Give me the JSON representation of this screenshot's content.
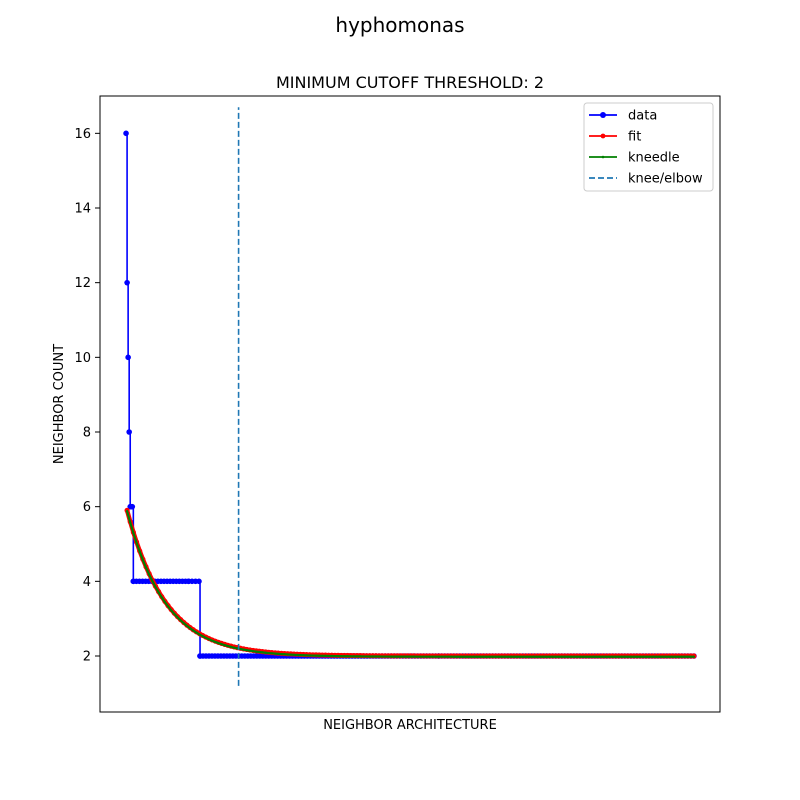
{
  "chart_data": {
    "type": "line",
    "suptitle": "hyphomonas",
    "title": "MINIMUM CUTOFF THRESHOLD: 2",
    "xlabel": "NEIGHBOR ARCHITECTURE",
    "ylabel": "NEIGHBOR COUNT",
    "xlim": [
      -25,
      570
    ],
    "ylim": [
      0.5,
      17.0
    ],
    "yticks": [
      2,
      4,
      6,
      8,
      10,
      12,
      14,
      16
    ],
    "grid": false,
    "legend_position": "top-right",
    "series": [
      {
        "name": "data",
        "color": "#0000ff",
        "marker": "circle",
        "points": [
          [
            0,
            16
          ],
          [
            1,
            12
          ],
          [
            2,
            10
          ],
          [
            3,
            8
          ],
          [
            4,
            6
          ],
          [
            5,
            6
          ],
          [
            6,
            6
          ],
          [
            7,
            4
          ],
          [
            60,
            4
          ],
          [
            70,
            4
          ],
          [
            71,
            2
          ],
          [
            300,
            2
          ],
          [
            545,
            2
          ]
        ]
      },
      {
        "name": "fit",
        "color": "#ff0000",
        "marker": "circle-small",
        "model": {
          "type": "exp_decay",
          "a": 3.9,
          "k": 0.027,
          "c": 2.0,
          "x_start": 1,
          "x_end": 545
        }
      },
      {
        "name": "kneedle",
        "color": "#008000",
        "marker": "point",
        "model": {
          "type": "exp_decay",
          "a": 3.9,
          "k": 0.027,
          "c": 1.98,
          "x_start": 1,
          "x_end": 545
        }
      },
      {
        "name": "knee/elbow",
        "color": "#1f77b4",
        "style": "dashed",
        "vline": {
          "x": 108,
          "ymin": 1.2,
          "ymax": 16.7
        }
      }
    ]
  }
}
